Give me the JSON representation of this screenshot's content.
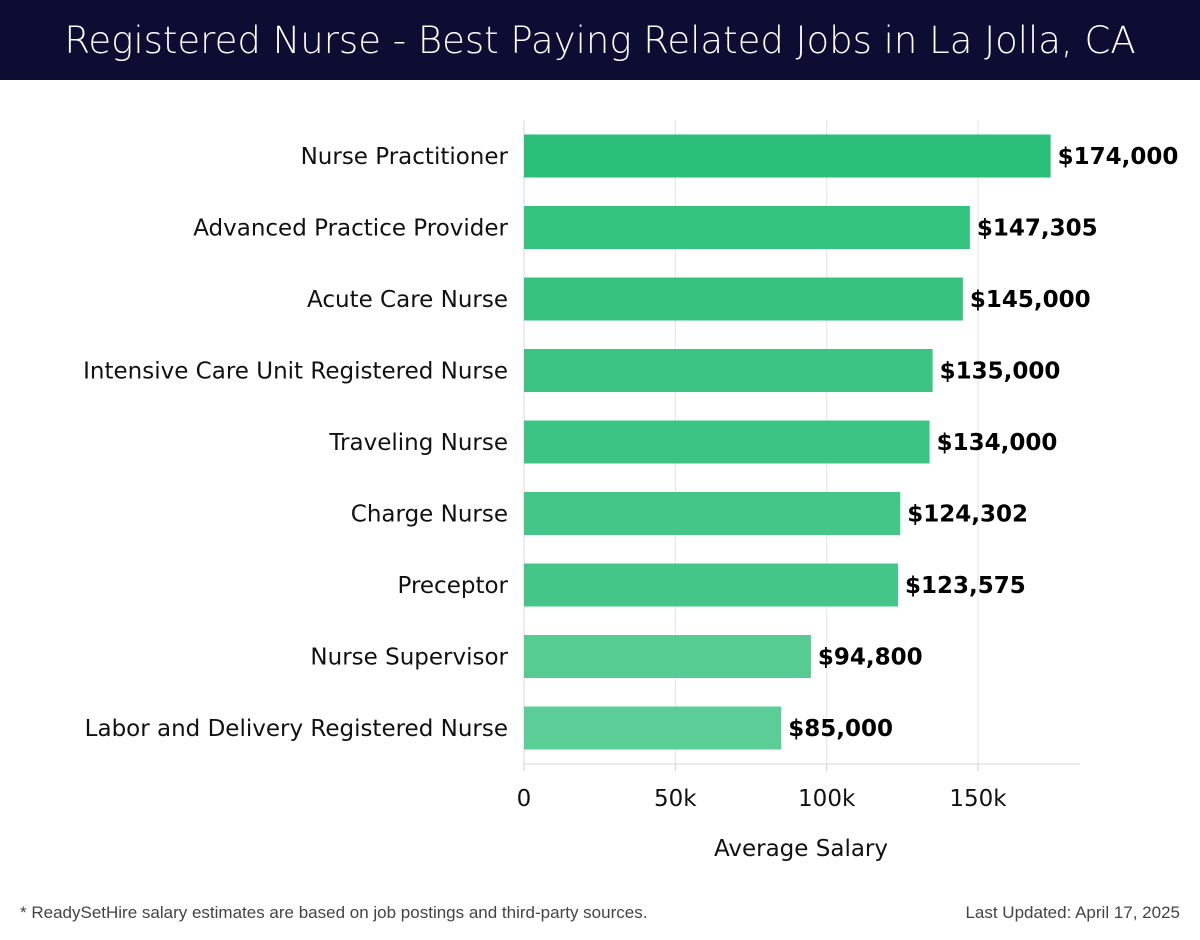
{
  "header": {
    "title": "Registered Nurse - Best Paying Related Jobs in La Jolla, CA"
  },
  "chart_data": {
    "type": "bar",
    "orientation": "horizontal",
    "categories": [
      "Nurse Practitioner",
      "Advanced Practice Provider",
      "Acute Care Nurse",
      "Intensive Care Unit Registered Nurse",
      "Traveling Nurse",
      "Charge Nurse",
      "Preceptor",
      "Nurse Supervisor",
      "Labor and Delivery Registered Nurse"
    ],
    "values": [
      174000,
      147305,
      145000,
      135000,
      134000,
      124302,
      123575,
      94800,
      85000
    ],
    "value_labels": [
      "$174,000",
      "$147,305",
      "$145,000",
      "$135,000",
      "$134,000",
      "$124,302",
      "$123,575",
      "$94,800",
      "$85,000"
    ],
    "bar_colors": [
      "#29bf78",
      "#34c27f",
      "#36c380",
      "#3cc484",
      "#3cc484",
      "#44c689",
      "#44c689",
      "#56cc93",
      "#5bcd96"
    ],
    "xlabel": "Average Salary",
    "xlim": [
      0,
      183000
    ],
    "xticks": [
      0,
      50000,
      100000,
      150000
    ],
    "xtick_labels": [
      "0",
      "50k",
      "100k",
      "150k"
    ],
    "grid": true
  },
  "footer": {
    "note": "* ReadySetHire salary estimates are based on job postings and third-party sources.",
    "updated": "Last Updated: April 17, 2025"
  }
}
